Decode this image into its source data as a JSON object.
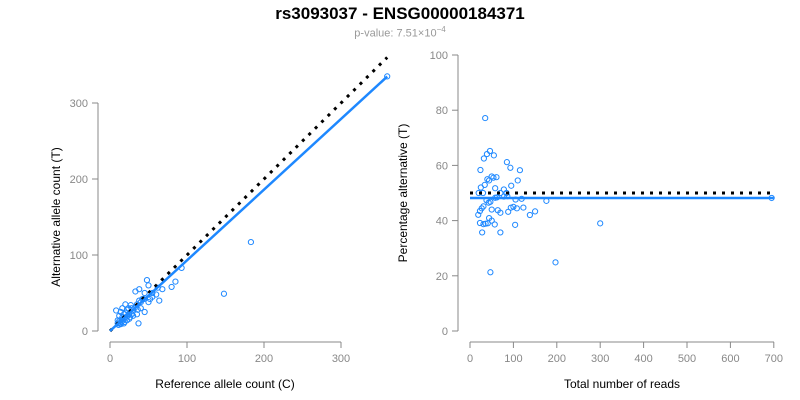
{
  "title": "rs3093037 - ENSG00000184371",
  "subtitle_prefix": "p-value: 7.51×10",
  "subtitle_exp": "−4",
  "chart_data": [
    {
      "type": "scatter",
      "xlabel": "Reference allele count (C)",
      "ylabel": "Alternative allele count (T)",
      "xlim": [
        0,
        360
      ],
      "ylim": [
        0,
        340
      ],
      "xticks": [
        0,
        100,
        200,
        300
      ],
      "yticks": [
        0,
        100,
        200,
        300
      ],
      "points": [
        [
          360,
          335
        ],
        [
          183,
          117
        ],
        [
          148,
          49
        ],
        [
          37,
          10
        ],
        [
          8,
          27
        ],
        [
          93,
          83
        ],
        [
          85,
          65
        ],
        [
          80,
          58
        ],
        [
          68,
          55
        ],
        [
          60,
          48
        ],
        [
          55,
          50
        ],
        [
          50,
          60
        ],
        [
          48,
          67
        ],
        [
          45,
          50
        ],
        [
          42,
          42
        ],
        [
          38,
          40
        ],
        [
          35,
          35
        ],
        [
          33,
          52
        ],
        [
          30,
          28
        ],
        [
          28,
          30
        ],
        [
          25,
          22
        ],
        [
          22,
          28
        ],
        [
          20,
          18
        ],
        [
          18,
          22
        ],
        [
          15,
          15
        ],
        [
          12,
          13
        ],
        [
          10,
          10
        ],
        [
          14,
          25
        ],
        [
          16,
          30
        ],
        [
          20,
          35
        ],
        [
          24,
          30
        ],
        [
          26,
          18
        ],
        [
          30,
          20
        ],
        [
          35,
          22
        ],
        [
          40,
          30
        ],
        [
          45,
          25
        ],
        [
          50,
          38
        ],
        [
          55,
          45
        ],
        [
          64,
          40
        ],
        [
          12,
          20
        ],
        [
          10,
          14
        ],
        [
          11,
          8
        ],
        [
          13,
          10
        ],
        [
          15,
          12
        ],
        [
          17,
          14
        ],
        [
          19,
          12
        ],
        [
          22,
          14
        ],
        [
          25,
          16
        ],
        [
          28,
          22
        ],
        [
          32,
          30
        ],
        [
          36,
          28
        ],
        [
          40,
          38
        ],
        [
          44,
          42
        ],
        [
          52,
          42
        ],
        [
          18,
          10
        ],
        [
          20,
          24
        ],
        [
          27,
          34
        ],
        [
          23,
          20
        ],
        [
          16,
          18
        ],
        [
          14,
          9
        ],
        [
          38,
          55
        ],
        [
          62,
          57
        ]
      ],
      "lines": [
        {
          "name": "fit",
          "slope": 0.93,
          "color": "#1E88FF"
        },
        {
          "name": "expected",
          "slope": 1,
          "color": "#000000",
          "style": "dotted"
        }
      ]
    },
    {
      "type": "scatter",
      "xlabel": "Total number of reads",
      "ylabel": "Percentage alternative (T)",
      "xlim": [
        0,
        700
      ],
      "ylim": [
        0,
        100
      ],
      "xticks": [
        0,
        100,
        200,
        300,
        400,
        500,
        600,
        700
      ],
      "yticks": [
        0,
        20,
        40,
        60,
        80,
        100
      ],
      "derived_from": "left panel points: total=ref+alt, pct=alt/total*100",
      "lines": [
        {
          "name": "fit",
          "y": 48.2,
          "color": "#1E88FF"
        },
        {
          "name": "expected",
          "y": 50,
          "color": "#000000",
          "style": "dotted"
        }
      ]
    }
  ]
}
